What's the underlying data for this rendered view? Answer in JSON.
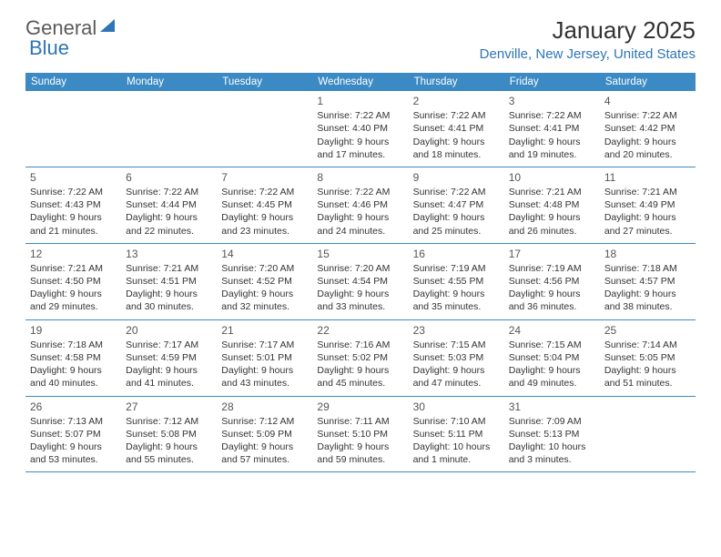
{
  "brand": {
    "text1": "General",
    "text2": "Blue"
  },
  "title": "January 2025",
  "location": "Denville, New Jersey, United States",
  "colors": {
    "header_bg": "#3b8ac4",
    "accent": "#2e75b6",
    "text": "#333333",
    "brand_gray": "#5a5a5a"
  },
  "weekdays": [
    "Sunday",
    "Monday",
    "Tuesday",
    "Wednesday",
    "Thursday",
    "Friday",
    "Saturday"
  ],
  "weeks": [
    [
      null,
      null,
      null,
      {
        "n": "1",
        "sr": "7:22 AM",
        "ss": "4:40 PM",
        "dl": "9 hours and 17 minutes."
      },
      {
        "n": "2",
        "sr": "7:22 AM",
        "ss": "4:41 PM",
        "dl": "9 hours and 18 minutes."
      },
      {
        "n": "3",
        "sr": "7:22 AM",
        "ss": "4:41 PM",
        "dl": "9 hours and 19 minutes."
      },
      {
        "n": "4",
        "sr": "7:22 AM",
        "ss": "4:42 PM",
        "dl": "9 hours and 20 minutes."
      }
    ],
    [
      {
        "n": "5",
        "sr": "7:22 AM",
        "ss": "4:43 PM",
        "dl": "9 hours and 21 minutes."
      },
      {
        "n": "6",
        "sr": "7:22 AM",
        "ss": "4:44 PM",
        "dl": "9 hours and 22 minutes."
      },
      {
        "n": "7",
        "sr": "7:22 AM",
        "ss": "4:45 PM",
        "dl": "9 hours and 23 minutes."
      },
      {
        "n": "8",
        "sr": "7:22 AM",
        "ss": "4:46 PM",
        "dl": "9 hours and 24 minutes."
      },
      {
        "n": "9",
        "sr": "7:22 AM",
        "ss": "4:47 PM",
        "dl": "9 hours and 25 minutes."
      },
      {
        "n": "10",
        "sr": "7:21 AM",
        "ss": "4:48 PM",
        "dl": "9 hours and 26 minutes."
      },
      {
        "n": "11",
        "sr": "7:21 AM",
        "ss": "4:49 PM",
        "dl": "9 hours and 27 minutes."
      }
    ],
    [
      {
        "n": "12",
        "sr": "7:21 AM",
        "ss": "4:50 PM",
        "dl": "9 hours and 29 minutes."
      },
      {
        "n": "13",
        "sr": "7:21 AM",
        "ss": "4:51 PM",
        "dl": "9 hours and 30 minutes."
      },
      {
        "n": "14",
        "sr": "7:20 AM",
        "ss": "4:52 PM",
        "dl": "9 hours and 32 minutes."
      },
      {
        "n": "15",
        "sr": "7:20 AM",
        "ss": "4:54 PM",
        "dl": "9 hours and 33 minutes."
      },
      {
        "n": "16",
        "sr": "7:19 AM",
        "ss": "4:55 PM",
        "dl": "9 hours and 35 minutes."
      },
      {
        "n": "17",
        "sr": "7:19 AM",
        "ss": "4:56 PM",
        "dl": "9 hours and 36 minutes."
      },
      {
        "n": "18",
        "sr": "7:18 AM",
        "ss": "4:57 PM",
        "dl": "9 hours and 38 minutes."
      }
    ],
    [
      {
        "n": "19",
        "sr": "7:18 AM",
        "ss": "4:58 PM",
        "dl": "9 hours and 40 minutes."
      },
      {
        "n": "20",
        "sr": "7:17 AM",
        "ss": "4:59 PM",
        "dl": "9 hours and 41 minutes."
      },
      {
        "n": "21",
        "sr": "7:17 AM",
        "ss": "5:01 PM",
        "dl": "9 hours and 43 minutes."
      },
      {
        "n": "22",
        "sr": "7:16 AM",
        "ss": "5:02 PM",
        "dl": "9 hours and 45 minutes."
      },
      {
        "n": "23",
        "sr": "7:15 AM",
        "ss": "5:03 PM",
        "dl": "9 hours and 47 minutes."
      },
      {
        "n": "24",
        "sr": "7:15 AM",
        "ss": "5:04 PM",
        "dl": "9 hours and 49 minutes."
      },
      {
        "n": "25",
        "sr": "7:14 AM",
        "ss": "5:05 PM",
        "dl": "9 hours and 51 minutes."
      }
    ],
    [
      {
        "n": "26",
        "sr": "7:13 AM",
        "ss": "5:07 PM",
        "dl": "9 hours and 53 minutes."
      },
      {
        "n": "27",
        "sr": "7:12 AM",
        "ss": "5:08 PM",
        "dl": "9 hours and 55 minutes."
      },
      {
        "n": "28",
        "sr": "7:12 AM",
        "ss": "5:09 PM",
        "dl": "9 hours and 57 minutes."
      },
      {
        "n": "29",
        "sr": "7:11 AM",
        "ss": "5:10 PM",
        "dl": "9 hours and 59 minutes."
      },
      {
        "n": "30",
        "sr": "7:10 AM",
        "ss": "5:11 PM",
        "dl": "10 hours and 1 minute."
      },
      {
        "n": "31",
        "sr": "7:09 AM",
        "ss": "5:13 PM",
        "dl": "10 hours and 3 minutes."
      },
      null
    ]
  ],
  "labels": {
    "sunrise": "Sunrise:",
    "sunset": "Sunset:",
    "daylight": "Daylight:"
  }
}
